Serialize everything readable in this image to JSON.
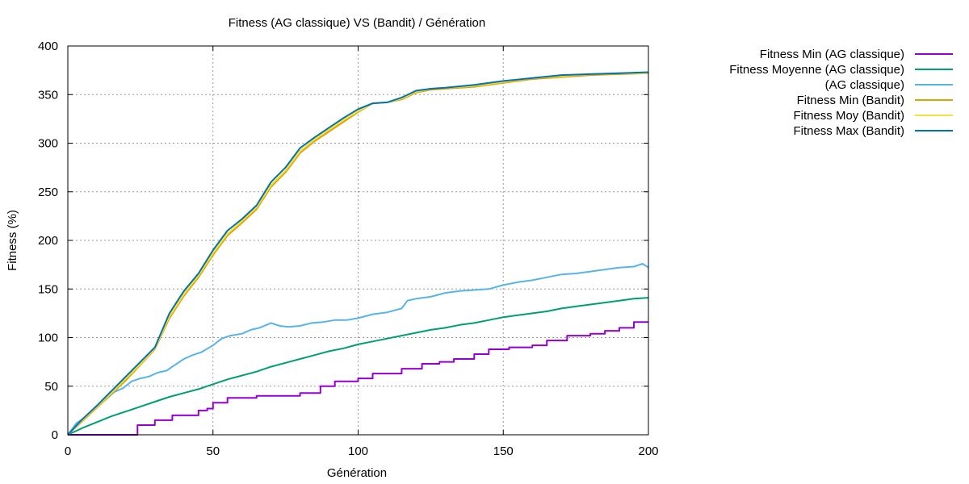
{
  "chart_data": {
    "type": "line",
    "title": "Fitness (AG classique) VS (Bandit) / Génération",
    "xlabel": "Génération",
    "ylabel": "Fitness (%)",
    "xlim": [
      0,
      200
    ],
    "ylim": [
      0,
      400
    ],
    "xticks": [
      0,
      50,
      100,
      150,
      200
    ],
    "yticks": [
      0,
      50,
      100,
      150,
      200,
      250,
      300,
      350,
      400
    ],
    "grid": true,
    "legend_position": "top-right, outside plot",
    "series": [
      {
        "name": "Fitness Min (AG classique)",
        "color": "#9400d3",
        "style": "step",
        "x": [
          0,
          22,
          24,
          30,
          36,
          45,
          48,
          50,
          55,
          65,
          75,
          80,
          84,
          87,
          92,
          100,
          105,
          115,
          122,
          128,
          133,
          140,
          145,
          152,
          160,
          165,
          172,
          180,
          185,
          190,
          195,
          200
        ],
        "y": [
          0,
          0,
          10,
          15,
          20,
          25,
          27,
          33,
          38,
          40,
          40,
          43,
          43,
          50,
          55,
          58,
          63,
          68,
          73,
          75,
          78,
          83,
          88,
          90,
          92,
          97,
          102,
          104,
          107,
          110,
          116,
          116
        ]
      },
      {
        "name": "Fitness Moyenne (AG classique)",
        "color": "#009e73",
        "style": "line",
        "x": [
          0,
          5,
          10,
          15,
          20,
          25,
          30,
          35,
          40,
          45,
          50,
          55,
          60,
          65,
          70,
          75,
          80,
          85,
          90,
          95,
          100,
          105,
          110,
          115,
          120,
          125,
          130,
          135,
          140,
          145,
          150,
          155,
          160,
          165,
          170,
          175,
          180,
          185,
          190,
          195,
          200
        ],
        "y": [
          0,
          7,
          13,
          19,
          24,
          29,
          34,
          39,
          43,
          47,
          52,
          57,
          61,
          65,
          70,
          74,
          78,
          82,
          86,
          89,
          93,
          96,
          99,
          102,
          105,
          108,
          110,
          113,
          115,
          118,
          121,
          123,
          125,
          127,
          130,
          132,
          134,
          136,
          138,
          140,
          141
        ]
      },
      {
        "name": "(AG classique)",
        "color": "#56b4e9",
        "style": "line",
        "x": [
          0,
          3,
          6,
          10,
          13,
          16,
          19,
          22,
          25,
          28,
          31,
          34,
          37,
          40,
          43,
          46,
          50,
          53,
          56,
          60,
          63,
          66,
          70,
          73,
          76,
          80,
          84,
          88,
          92,
          96,
          100,
          105,
          110,
          115,
          117,
          120,
          125,
          130,
          135,
          140,
          145,
          150,
          155,
          160,
          165,
          170,
          175,
          180,
          185,
          190,
          195,
          198,
          200
        ],
        "y": [
          0,
          12,
          18,
          30,
          36,
          44,
          48,
          55,
          58,
          60,
          64,
          66,
          72,
          78,
          82,
          85,
          92,
          99,
          102,
          104,
          108,
          110,
          115,
          112,
          111,
          112,
          115,
          116,
          118,
          118,
          120,
          124,
          126,
          130,
          138,
          140,
          142,
          146,
          148,
          149,
          150,
          154,
          157,
          159,
          162,
          165,
          166,
          168,
          170,
          172,
          173,
          176,
          172
        ]
      },
      {
        "name": "Fitness Min (Bandit)",
        "color": "#e69f00",
        "style": "line",
        "x": [
          0,
          5,
          10,
          15,
          20,
          25,
          30,
          35,
          40,
          45,
          50,
          55,
          60,
          65,
          70,
          75,
          80,
          85,
          90,
          95,
          100,
          105,
          110,
          115,
          120,
          125,
          130,
          140,
          150,
          160,
          170,
          180,
          190,
          200
        ],
        "y": [
          0,
          14,
          28,
          42,
          56,
          72,
          88,
          120,
          143,
          162,
          185,
          205,
          218,
          232,
          255,
          270,
          290,
          302,
          312,
          322,
          332,
          341,
          342,
          345,
          352,
          355,
          356,
          358,
          362,
          366,
          368,
          370,
          371,
          372
        ]
      },
      {
        "name": "Fitness Moy (Bandit)",
        "color": "#f0e442",
        "style": "line",
        "x": [
          0,
          5,
          10,
          15,
          20,
          25,
          30,
          35,
          40,
          45,
          50,
          55,
          60,
          65,
          70,
          75,
          80,
          85,
          90,
          95,
          100,
          105,
          110,
          115,
          120,
          125,
          130,
          140,
          150,
          160,
          170,
          180,
          190,
          200
        ],
        "y": [
          0,
          15,
          29,
          43,
          58,
          73,
          89,
          122,
          145,
          164,
          187,
          207,
          220,
          234,
          257,
          272,
          292,
          304,
          314,
          324,
          333,
          341,
          342,
          346,
          353,
          356,
          357,
          359,
          363,
          367,
          369,
          371,
          372,
          372
        ]
      },
      {
        "name": "Fitness Max (Bandit)",
        "color": "#0072b2",
        "style": "line",
        "x": [
          0,
          5,
          10,
          15,
          20,
          25,
          30,
          35,
          40,
          45,
          50,
          55,
          60,
          65,
          70,
          75,
          80,
          85,
          90,
          95,
          100,
          105,
          110,
          115,
          120,
          125,
          130,
          140,
          150,
          160,
          170,
          180,
          190,
          200
        ],
        "y": [
          0,
          16,
          30,
          45,
          60,
          75,
          90,
          125,
          148,
          166,
          190,
          210,
          222,
          236,
          260,
          275,
          295,
          306,
          316,
          326,
          335,
          341,
          342,
          347,
          354,
          356,
          357,
          360,
          364,
          367,
          370,
          371,
          372,
          373
        ]
      }
    ]
  }
}
